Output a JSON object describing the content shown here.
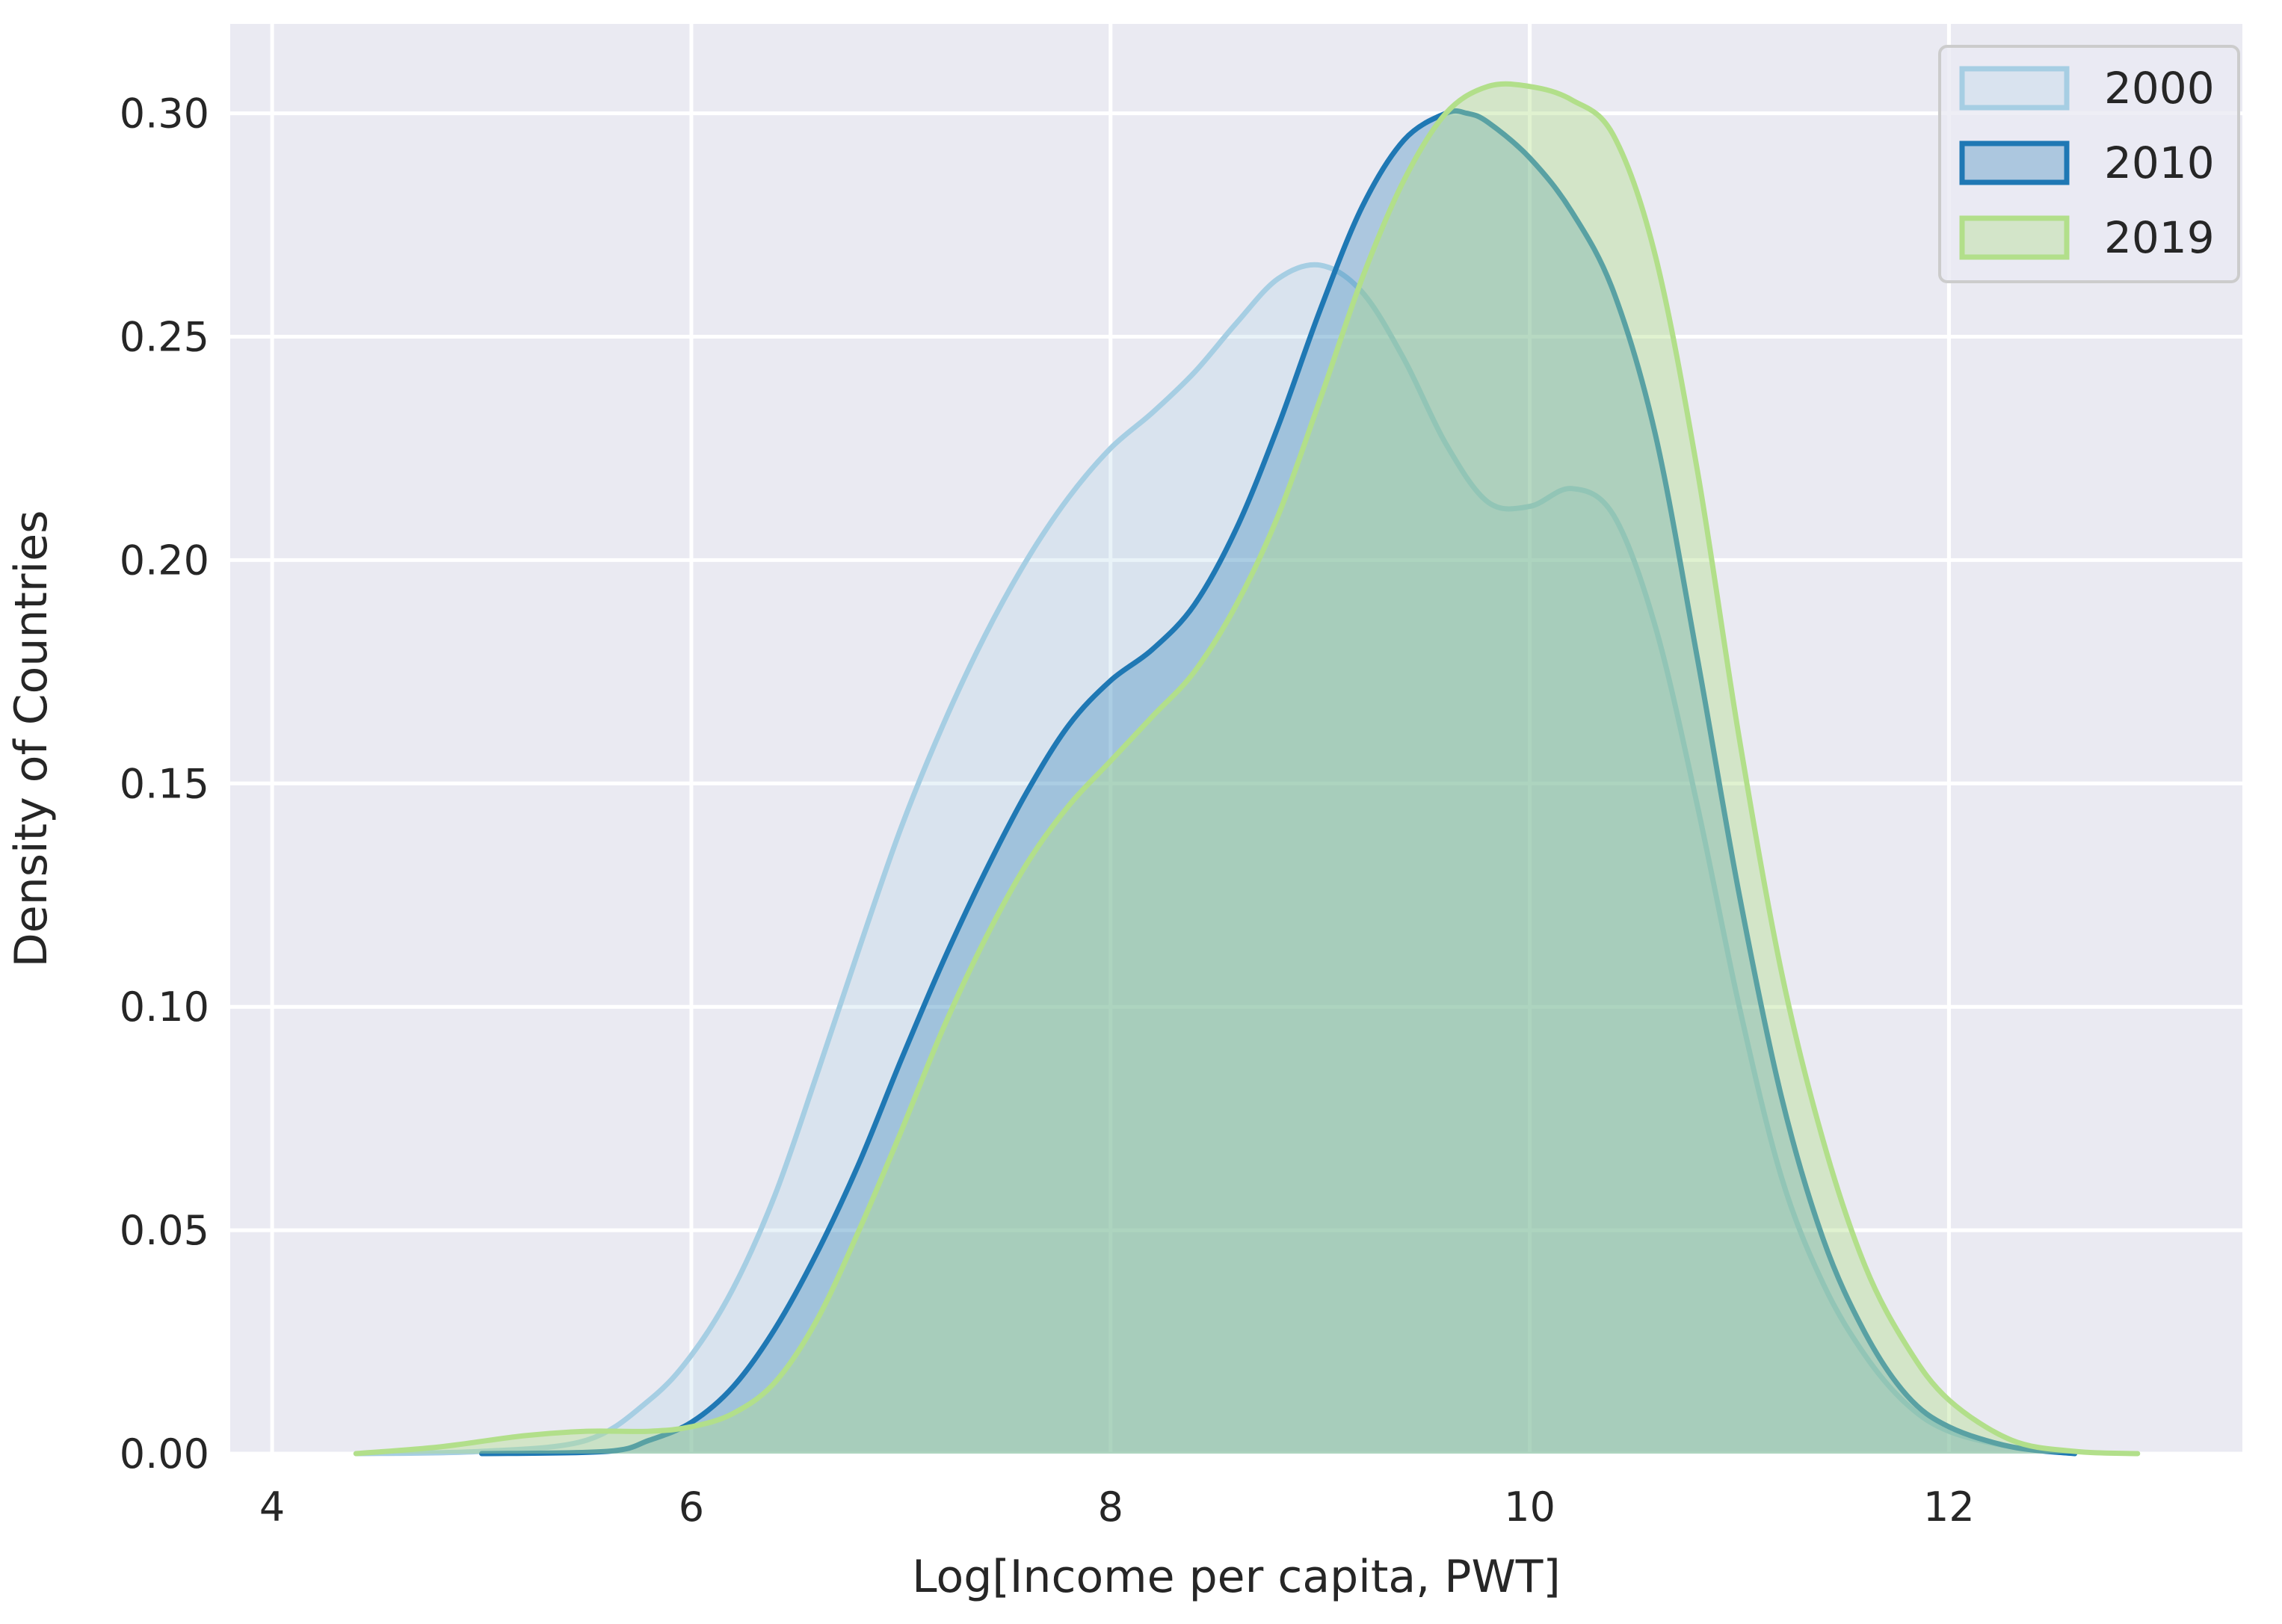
{
  "chart_data": {
    "type": "area",
    "title": "",
    "xlabel": "Log[Income per capita, PWT]",
    "ylabel": "Density of Countries",
    "xlim": [
      3.8,
      13.4
    ],
    "ylim": [
      0,
      0.32
    ],
    "xticks": [
      4,
      6,
      8,
      10,
      12
    ],
    "xtick_labels": [
      "4",
      "6",
      "8",
      "10",
      "12"
    ],
    "yticks": [
      0,
      0.05,
      0.1,
      0.15,
      0.2,
      0.25,
      0.3
    ],
    "ytick_labels": [
      "0.00",
      "0.05",
      "0.10",
      "0.15",
      "0.20",
      "0.25",
      "0.30"
    ],
    "grid": true,
    "legend_position": "top-right",
    "series": [
      {
        "name": "2000",
        "stroke": "#a6cee3",
        "fill": "#a6cee3",
        "fill_opacity": 0.25,
        "x": [
          4.4,
          5.0,
          5.5,
          5.8,
          6.0,
          6.2,
          6.4,
          6.6,
          6.8,
          7.0,
          7.2,
          7.4,
          7.6,
          7.8,
          8.0,
          8.2,
          8.4,
          8.6,
          8.8,
          9.0,
          9.2,
          9.4,
          9.6,
          9.8,
          10.0,
          10.2,
          10.4,
          10.6,
          10.8,
          11.0,
          11.2,
          11.4,
          11.6,
          11.8,
          12.0,
          12.3,
          12.6
        ],
        "y": [
          0.0,
          0.0005,
          0.003,
          0.012,
          0.022,
          0.037,
          0.058,
          0.085,
          0.113,
          0.14,
          0.163,
          0.183,
          0.2,
          0.214,
          0.225,
          0.233,
          0.242,
          0.253,
          0.263,
          0.266,
          0.26,
          0.245,
          0.226,
          0.213,
          0.212,
          0.216,
          0.21,
          0.185,
          0.145,
          0.1,
          0.062,
          0.038,
          0.022,
          0.011,
          0.005,
          0.0015,
          0.0
        ]
      },
      {
        "name": "2010",
        "stroke": "#1f78b4",
        "fill": "#1f78b4",
        "fill_opacity": 0.3,
        "x": [
          5.0,
          5.6,
          5.8,
          6.0,
          6.2,
          6.4,
          6.6,
          6.8,
          7.0,
          7.2,
          7.4,
          7.6,
          7.8,
          8.0,
          8.2,
          8.4,
          8.6,
          8.8,
          9.0,
          9.2,
          9.4,
          9.6,
          9.7,
          9.8,
          10.0,
          10.2,
          10.4,
          10.6,
          10.8,
          11.0,
          11.2,
          11.4,
          11.6,
          11.8,
          12.0,
          12.3,
          12.6
        ],
        "y": [
          0.0,
          0.0005,
          0.003,
          0.007,
          0.015,
          0.028,
          0.045,
          0.065,
          0.088,
          0.11,
          0.13,
          0.148,
          0.163,
          0.173,
          0.18,
          0.19,
          0.207,
          0.23,
          0.256,
          0.279,
          0.294,
          0.3,
          0.3,
          0.298,
          0.29,
          0.278,
          0.26,
          0.228,
          0.178,
          0.125,
          0.08,
          0.048,
          0.027,
          0.013,
          0.006,
          0.0015,
          0.0
        ]
      },
      {
        "name": "2019",
        "stroke": "#b2df8a",
        "fill": "#b2df8a",
        "fill_opacity": 0.4,
        "x": [
          4.4,
          4.8,
          5.2,
          5.5,
          5.8,
          6.0,
          6.2,
          6.4,
          6.6,
          6.8,
          7.0,
          7.2,
          7.4,
          7.6,
          7.8,
          8.0,
          8.2,
          8.4,
          8.6,
          8.8,
          9.0,
          9.2,
          9.4,
          9.6,
          9.8,
          10.0,
          10.2,
          10.4,
          10.6,
          10.8,
          11.0,
          11.2,
          11.4,
          11.6,
          11.8,
          12.0,
          12.3,
          12.6,
          12.9
        ],
        "y": [
          0.0,
          0.0015,
          0.004,
          0.005,
          0.005,
          0.006,
          0.009,
          0.016,
          0.03,
          0.05,
          0.072,
          0.095,
          0.115,
          0.132,
          0.145,
          0.155,
          0.165,
          0.175,
          0.19,
          0.21,
          0.236,
          0.263,
          0.285,
          0.3,
          0.306,
          0.306,
          0.303,
          0.295,
          0.268,
          0.22,
          0.16,
          0.108,
          0.07,
          0.042,
          0.024,
          0.012,
          0.003,
          0.0005,
          0.0
        ]
      }
    ]
  },
  "colors": {
    "plot_background": "#eaeaf2",
    "grid": "#ffffff",
    "text": "#262626"
  }
}
